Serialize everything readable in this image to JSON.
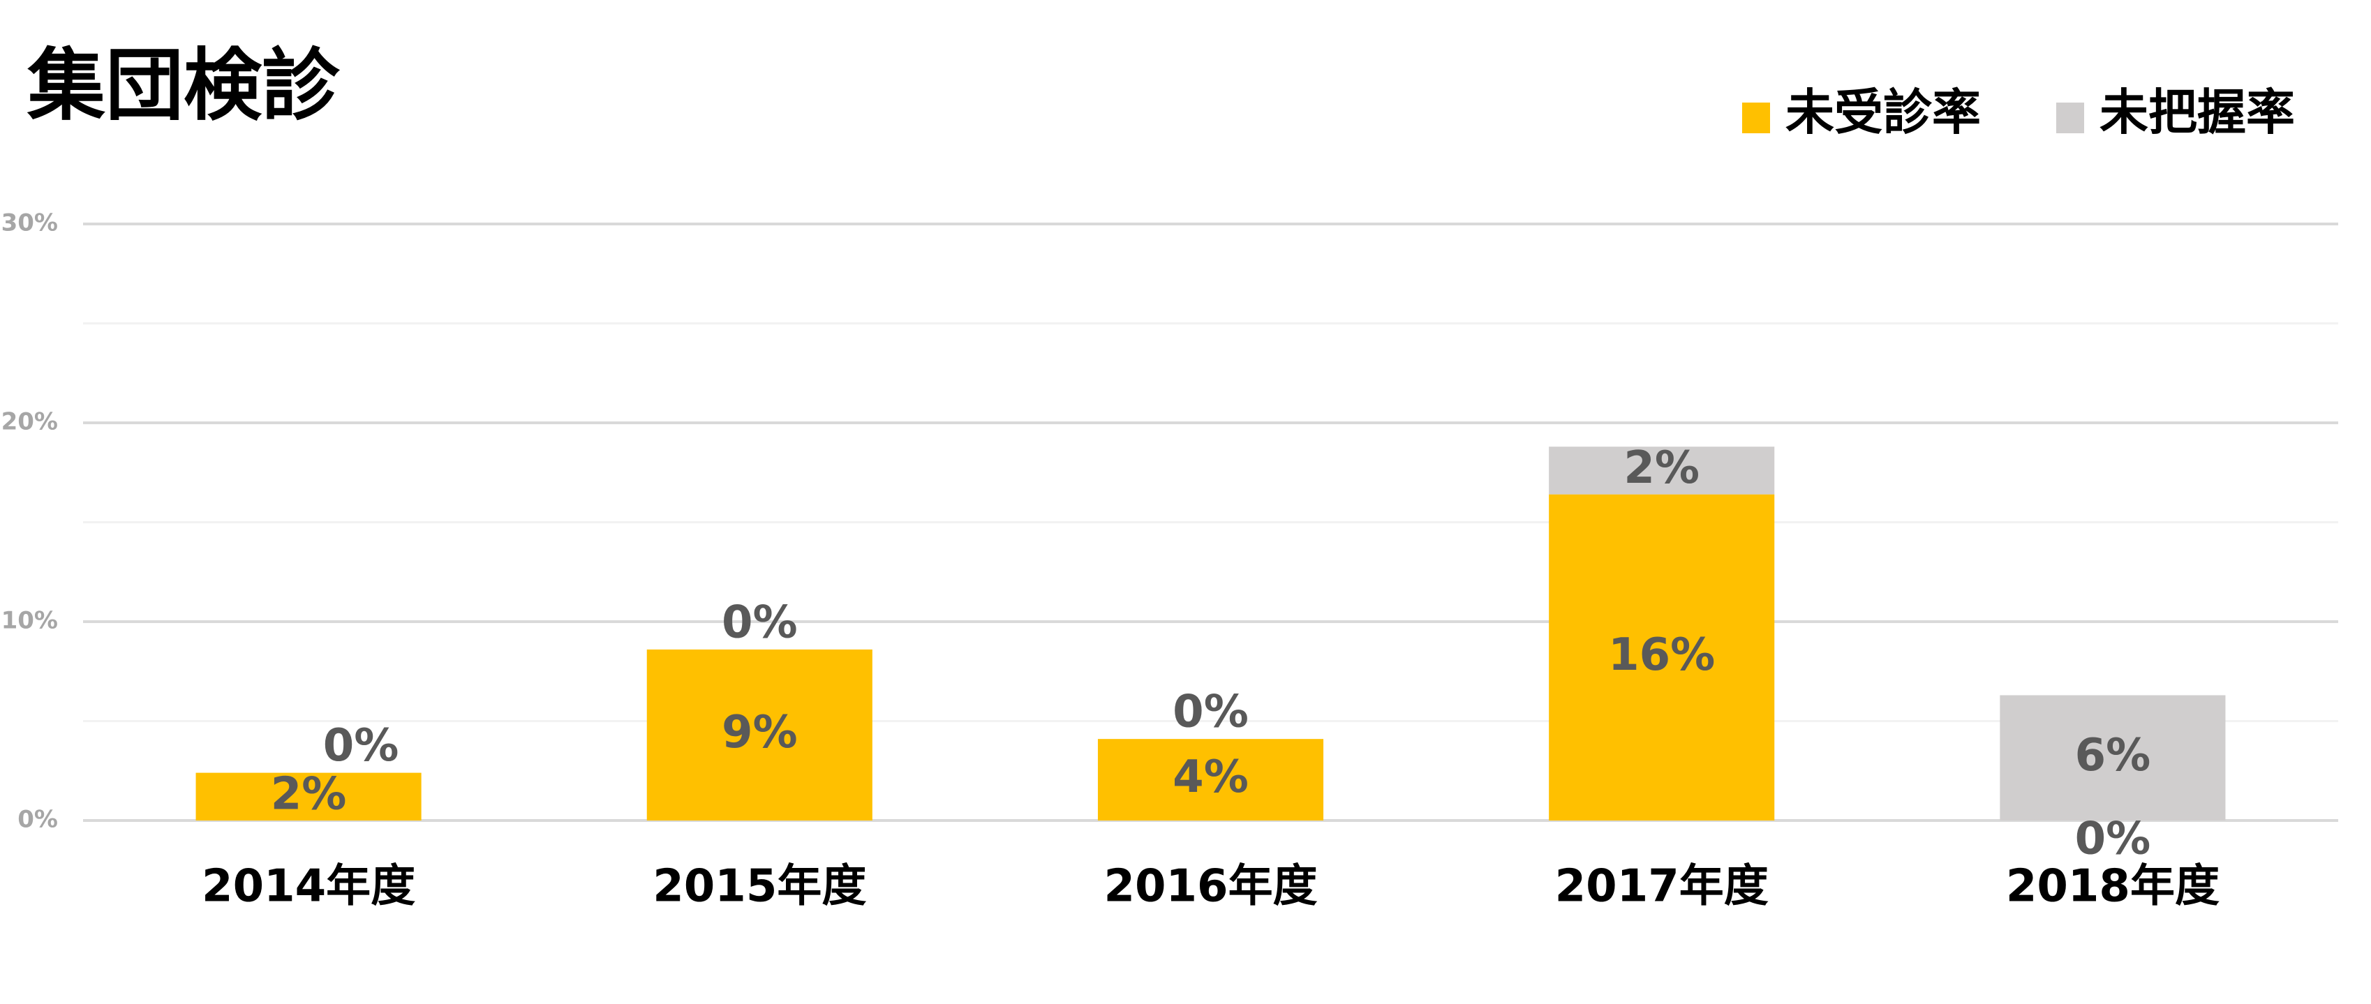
{
  "chart_data": {
    "type": "stacked_bar",
    "title": "集団検診",
    "categories": [
      "2014年度",
      "2015年度",
      "2016年度",
      "2017年度",
      "2018年度"
    ],
    "series": [
      {
        "name": "未受診率",
        "color": "#FFC000",
        "values": [
          2.4,
          8.6,
          4.1,
          16.4,
          0
        ],
        "value_labels": [
          "2%",
          "9%",
          "4%",
          "16%",
          "0%"
        ]
      },
      {
        "name": "未把握率",
        "color": "#D0CECE",
        "values": [
          0,
          0,
          0,
          2.4,
          6.3
        ],
        "value_labels": [
          "0%",
          "0%",
          "0%",
          "2%",
          "6%"
        ]
      }
    ],
    "ylim": [
      0,
      30
    ],
    "yticks": [
      {
        "value": 0,
        "label": "0%"
      },
      {
        "value": 10,
        "label": "10%"
      },
      {
        "value": 20,
        "label": "20%"
      },
      {
        "value": 30,
        "label": "30%"
      }
    ],
    "minor_yticks": [
      5,
      15,
      25
    ],
    "grid": true,
    "legend": "top-right"
  }
}
